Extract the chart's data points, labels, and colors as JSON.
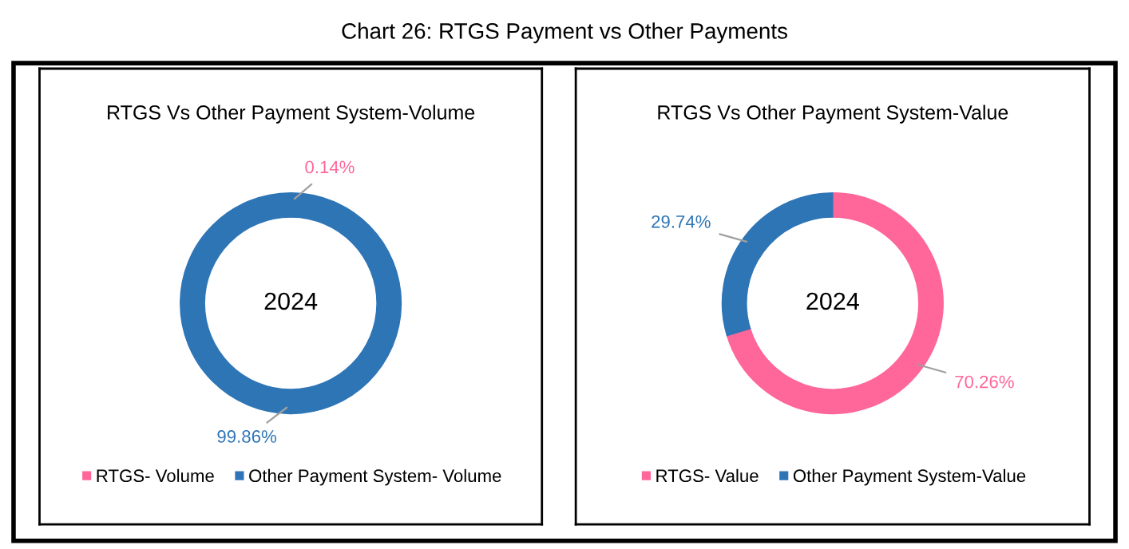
{
  "chart_data": [
    {
      "type": "donut",
      "title": "RTGS Vs Other Payment System-Volume",
      "annotations": [
        "Chart 26: RTGS Payment vs Other Payments",
        "2024"
      ],
      "categories": [
        "RTGS- Volume",
        "Other Payment System- Volume"
      ],
      "values": [
        0.14,
        99.86
      ],
      "colors": [
        "#ff6699",
        "#2e75b6"
      ],
      "value_labels": [
        "0.14%",
        "99.86%"
      ],
      "legend": "bottom"
    },
    {
      "type": "donut",
      "title": "RTGS Vs Other Payment System-Value",
      "annotations": [
        "2024"
      ],
      "categories": [
        "RTGS- Value",
        "Other Payment System-Value"
      ],
      "values": [
        70.26,
        29.74
      ],
      "colors": [
        "#ff6699",
        "#2e75b6"
      ],
      "value_labels": [
        "70.26%",
        "29.74%"
      ],
      "legend": "bottom"
    }
  ]
}
